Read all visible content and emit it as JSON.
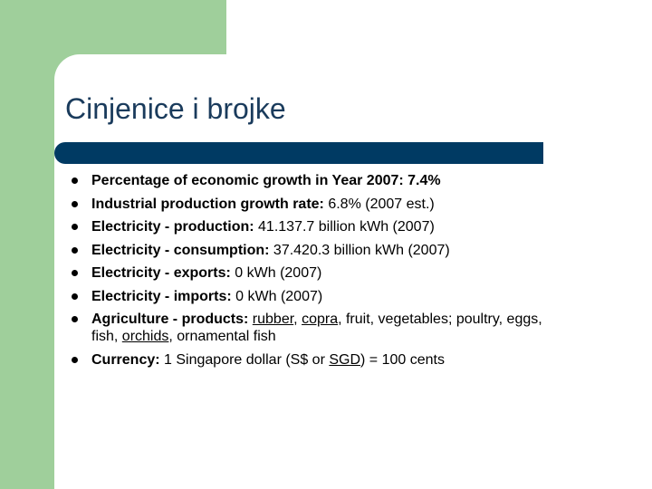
{
  "title": "Cinjenice i brojke",
  "bullets": [
    [
      {
        "text": "Percentage of economic growth in Year 2007: 7.4%",
        "style": "bold"
      }
    ],
    [
      {
        "text": "Industrial production growth rate:",
        "style": "bold"
      },
      {
        "text": " 6.8% (2007 est.)",
        "style": "plain"
      }
    ],
    [
      {
        "text": "Electricity - production:",
        "style": "bold"
      },
      {
        "text": " 41.137.7 billion kWh (2007)",
        "style": "plain"
      }
    ],
    [
      {
        "text": "Electricity - consumption:",
        "style": "bold"
      },
      {
        "text": " 37.420.3 billion kWh (2007)",
        "style": "plain"
      }
    ],
    [
      {
        "text": "Electricity - exports:",
        "style": "bold"
      },
      {
        "text": " 0 kWh (2007)",
        "style": "plain"
      }
    ],
    [
      {
        "text": "Electricity - imports:",
        "style": "bold"
      },
      {
        "text": " 0 kWh (2007)",
        "style": "plain"
      }
    ],
    [
      {
        "text": "Agriculture - products:",
        "style": "bold"
      },
      {
        "text": " ",
        "style": "plain"
      },
      {
        "text": "rubber",
        "style": "link"
      },
      {
        "text": ", ",
        "style": "plain"
      },
      {
        "text": "copra",
        "style": "link"
      },
      {
        "text": ", fruit, vegetables; poultry, eggs, fish, ",
        "style": "plain"
      },
      {
        "text": "orchids",
        "style": "link"
      },
      {
        "text": ", ornamental fish",
        "style": "plain"
      }
    ],
    [
      {
        "text": "Currency:",
        "style": "bold"
      },
      {
        "text": " 1 Singapore dollar (S$ or ",
        "style": "plain"
      },
      {
        "text": "SGD",
        "style": "link"
      },
      {
        "text": ") = 100 cents",
        "style": "plain"
      }
    ]
  ]
}
